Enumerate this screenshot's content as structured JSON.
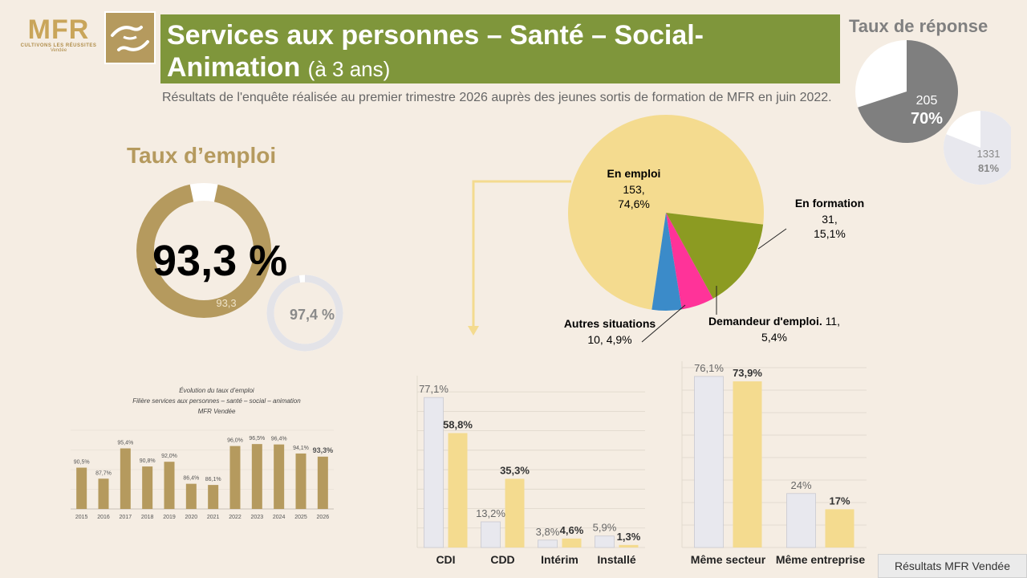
{
  "header": {
    "logo_text": "MFR",
    "logo_tagline": "CULTIVONS LES RÉUSSITES",
    "logo_region": "Vendée",
    "title": "Services aux personnes – Santé – Social-Animation",
    "title_suffix": "(à 3 ans)",
    "subtitle": "Résultats de l'enquête réalisée au premier trimestre 2026 auprès des jeunes sortis de formation de MFR en juin 2022."
  },
  "response_rate": {
    "heading": "Taux de réponse",
    "main_count": "205",
    "main_pct": "70%",
    "main_value": 0.7,
    "secondary_count": "1331",
    "secondary_pct": "81%",
    "secondary_value": 0.81
  },
  "employment_rate": {
    "heading": "Taux d’emploi",
    "main_value_text": "93,3 %",
    "ring_label": "93,3",
    "main_value": 93.3,
    "secondary_value_text": "97,4 %",
    "secondary_value": 97.4
  },
  "colors": {
    "gold": "#b59a5e",
    "olive": "#7f963b",
    "pale_yellow": "#f4db8f",
    "light_grey_bar": "#e8e8ee",
    "pink": "#ff3399",
    "blue": "#3b8bc9",
    "olive_slice": "#8c9b22",
    "grey": "#808080"
  },
  "footer": {
    "source": "Résultats MFR Vendée"
  },
  "chart_data": [
    {
      "type": "pie",
      "categories": [
        "En emploi",
        "En formation",
        "Demandeur d'emploi.",
        "Autres situations"
      ],
      "counts": [
        153,
        31,
        11,
        10
      ],
      "values": [
        74.6,
        15.1,
        5.4,
        4.9
      ],
      "value_labels": [
        "153,\n74,6%",
        "31,\n15,1%",
        "11,\n5,4%",
        "10, 4,9%"
      ],
      "colors": [
        "#f4db8f",
        "#8c9b22",
        "#ff3399",
        "#3b8bc9"
      ]
    },
    {
      "type": "bar",
      "title": "Évolution du taux d’emploi",
      "subtitle": "Filière services aux personnes – santé – social – animation",
      "source_line": "MFR Vendée",
      "categories": [
        "2015",
        "2016",
        "2017",
        "2018",
        "2019",
        "2020",
        "2021",
        "2022",
        "2023",
        "2024",
        "2025",
        "2026"
      ],
      "values": [
        90.5,
        87.7,
        95.4,
        90.8,
        92.0,
        86.4,
        86.1,
        96.0,
        96.5,
        96.4,
        94.1,
        93.3
      ],
      "value_labels": [
        "90,5%",
        "87,7%",
        "95,4%",
        "90,8%",
        "92,0%",
        "86,4%",
        "86,1%",
        "96,0%",
        "96,5%",
        "96,4%",
        "94,1%",
        "93,3%"
      ],
      "ylim": [
        80,
        100
      ],
      "grid": true
    },
    {
      "type": "bar",
      "categories": [
        "CDI",
        "CDD",
        "Intérim",
        "Installé"
      ],
      "series": [
        {
          "values": [
            77.1,
            13.2,
            3.8,
            5.9
          ],
          "labels": [
            "77,1%",
            "13,2%",
            "3,8%",
            "5,9%"
          ]
        },
        {
          "values": [
            58.8,
            35.3,
            4.6,
            1.3
          ],
          "labels": [
            "58,8%",
            "35,3%",
            "4,6%",
            "1,3%"
          ]
        }
      ],
      "ylim": [
        0,
        85
      ],
      "grid": true
    },
    {
      "type": "bar",
      "categories": [
        "Même secteur",
        "Même entreprise"
      ],
      "series": [
        {
          "values": [
            76.1,
            24
          ],
          "labels": [
            "76,1%",
            "24%"
          ]
        },
        {
          "values": [
            73.9,
            17
          ],
          "labels": [
            "73,9%",
            "17%"
          ]
        }
      ],
      "ylim": [
        0,
        80
      ],
      "grid": true
    }
  ]
}
